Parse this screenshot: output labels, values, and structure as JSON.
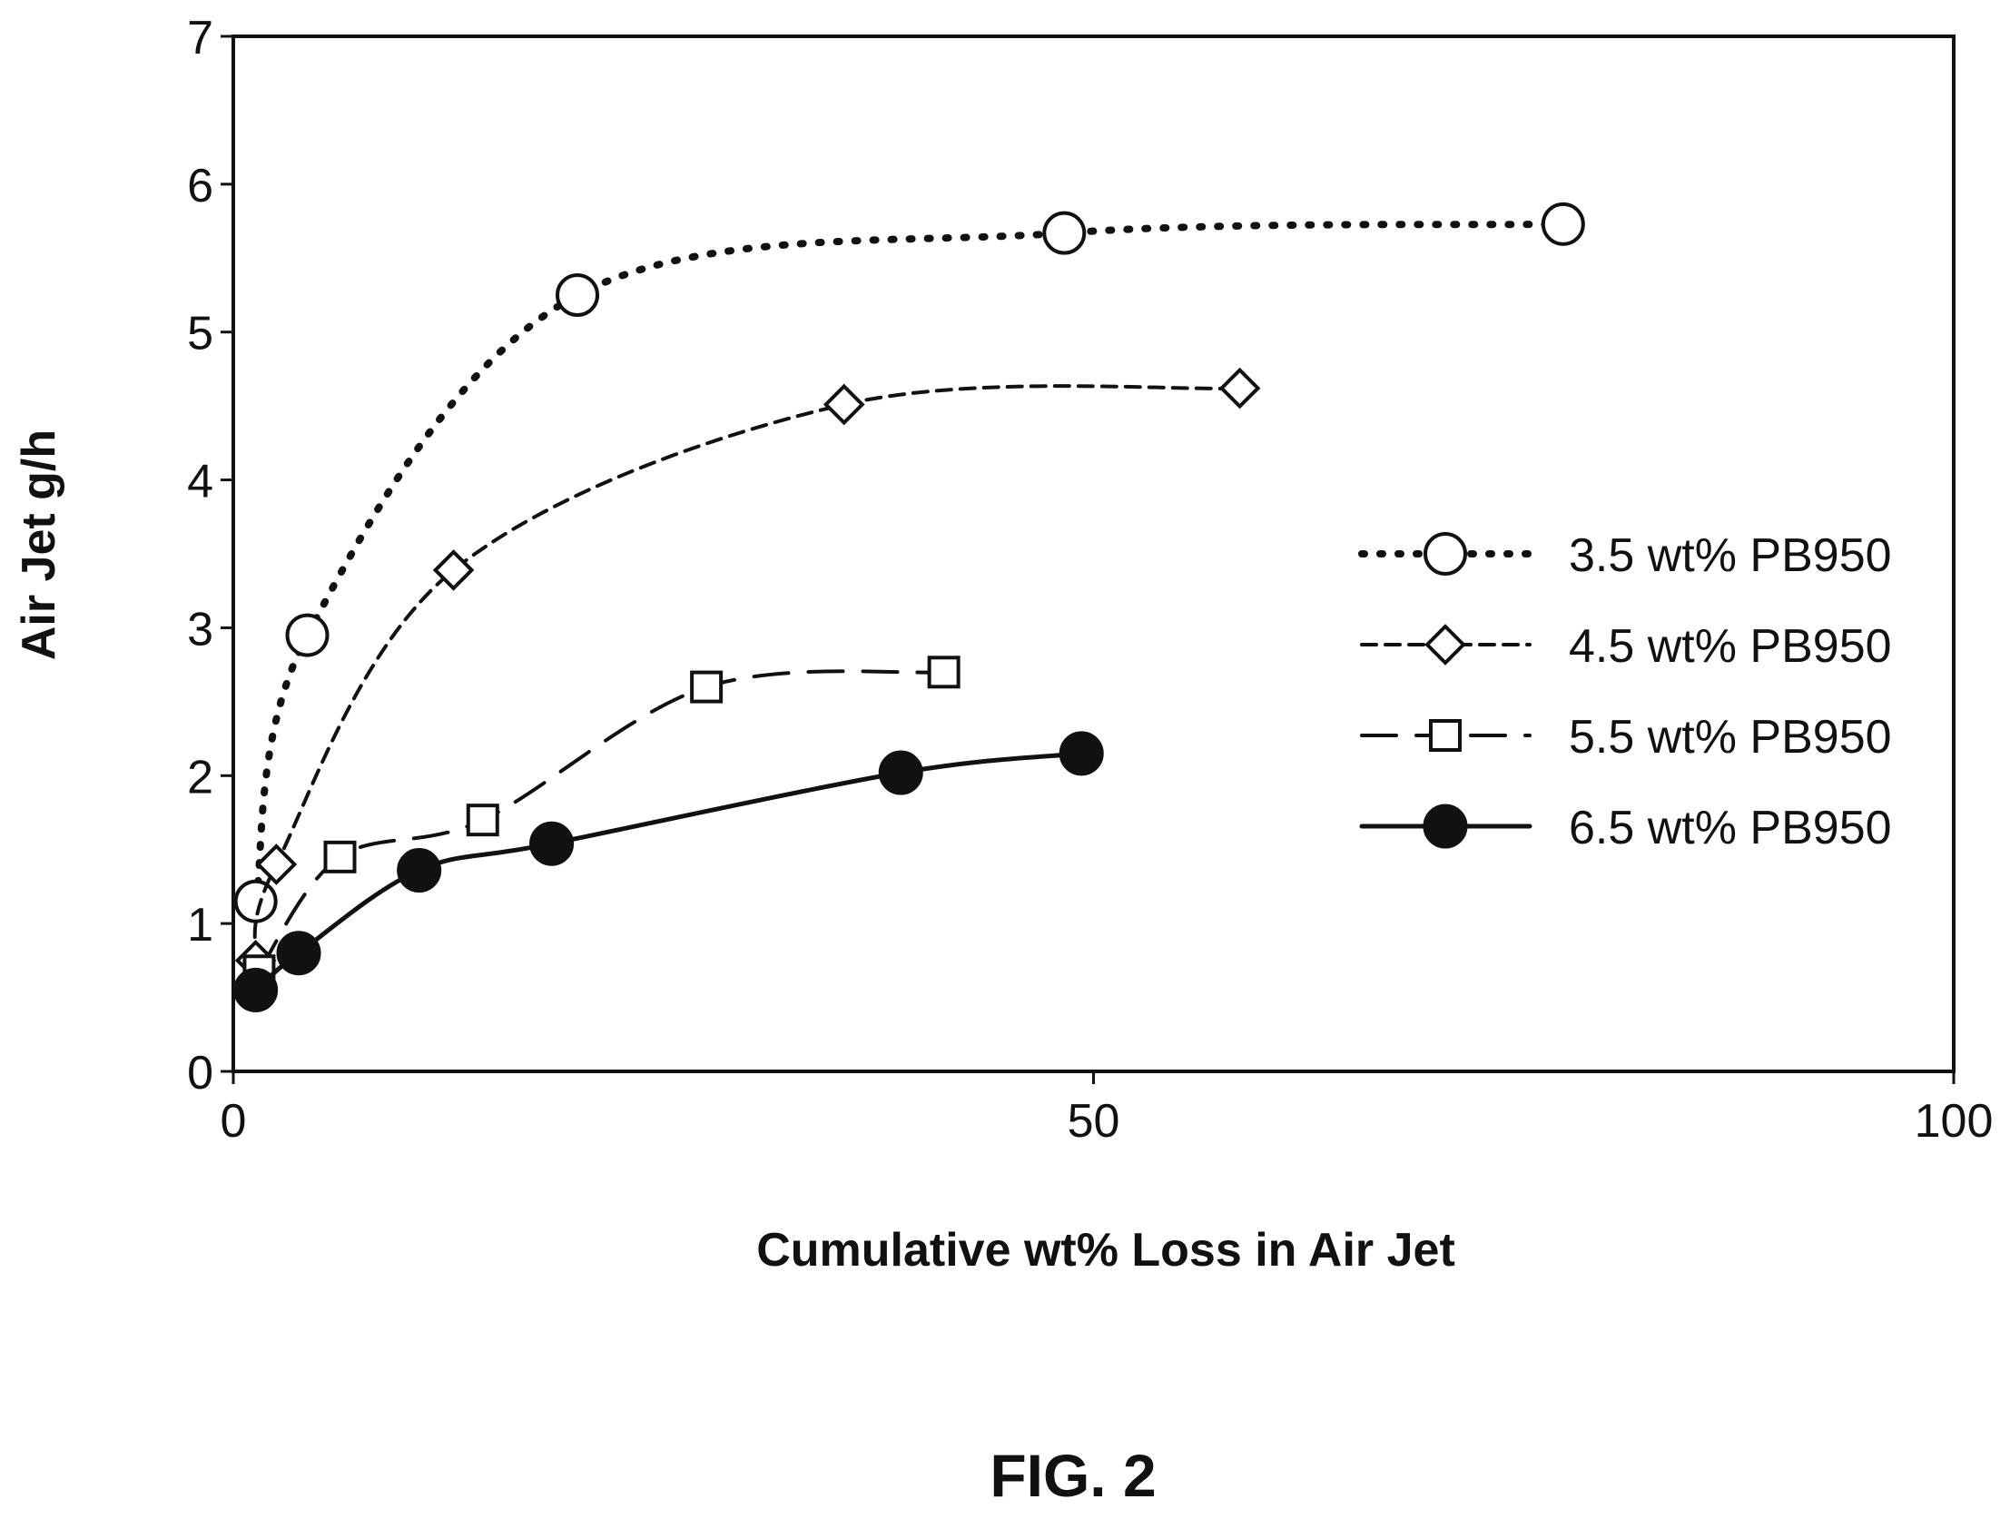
{
  "figure_label": "FIG. 2",
  "chart_data": {
    "type": "line",
    "title": "",
    "xlabel": "Cumulative wt% Loss in Air Jet",
    "ylabel": "Air Jet g/h",
    "xlim": [
      0,
      100
    ],
    "ylim": [
      0,
      7
    ],
    "x_ticks": [
      "0",
      "50",
      "100"
    ],
    "y_ticks": [
      "0",
      "1",
      "2",
      "3",
      "4",
      "5",
      "6",
      "7"
    ],
    "grid": false,
    "legend_position": "right",
    "series": [
      {
        "name": "3.5 wt% PB950",
        "marker": "circle-open",
        "line_style": "dotted",
        "x": [
          1.3,
          4.3,
          20.0,
          48.3,
          77.3
        ],
        "y": [
          1.15,
          2.95,
          5.25,
          5.67,
          5.73
        ]
      },
      {
        "name": "4.5 wt% PB950",
        "marker": "diamond-open",
        "line_style": "short-dashed",
        "x": [
          1.3,
          2.5,
          12.8,
          35.5,
          58.5
        ],
        "y": [
          0.75,
          1.4,
          3.39,
          4.51,
          4.62
        ]
      },
      {
        "name": "5.5 wt% PB950",
        "marker": "square-open",
        "line_style": "long-dashed",
        "x": [
          1.5,
          6.2,
          14.5,
          27.5,
          41.3
        ],
        "y": [
          0.68,
          1.45,
          1.7,
          2.6,
          2.7
        ]
      },
      {
        "name": "6.5 wt% PB950",
        "marker": "circle-filled",
        "line_style": "solid",
        "x": [
          1.3,
          3.8,
          10.8,
          18.5,
          38.8,
          49.3
        ],
        "y": [
          0.55,
          0.8,
          1.36,
          1.54,
          2.02,
          2.15
        ]
      }
    ]
  }
}
